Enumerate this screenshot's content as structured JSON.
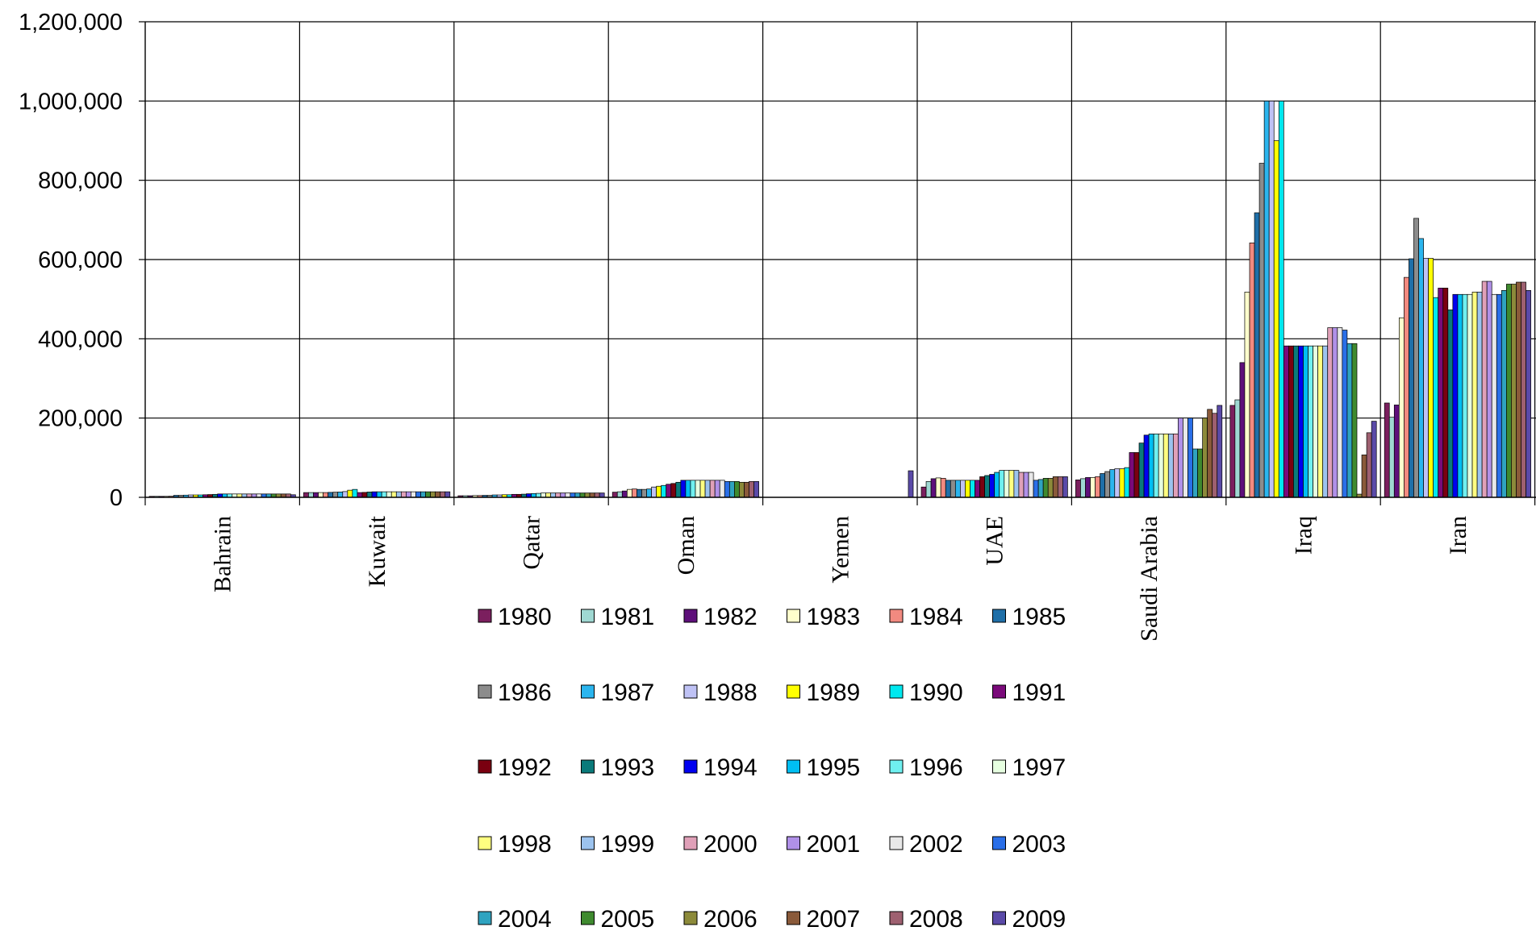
{
  "chart_data": {
    "type": "bar",
    "title": "",
    "xlabel": "",
    "ylabel": "",
    "ylim": [
      0,
      1200000
    ],
    "yticks": [
      0,
      200000,
      400000,
      600000,
      800000,
      1000000,
      1200000
    ],
    "ytick_labels": [
      "0",
      "200,000",
      "400,000",
      "600,000",
      "800,000",
      "1,000,000",
      "1,200,000"
    ],
    "grid": true,
    "legend_position": "bottom",
    "categories": [
      "Bahrain",
      "Kuwait",
      "Qatar",
      "Oman",
      "Yemen",
      "UAE",
      "Saudi Arabia",
      "Iraq",
      "Iran"
    ],
    "series": [
      {
        "name": "1980",
        "color": "#7B1F5E",
        "values": [
          2500,
          12000,
          4000,
          13000,
          0,
          26000,
          44000,
          232000,
          238000
        ]
      },
      {
        "name": "1981",
        "color": "#9FD8D2",
        "values": [
          2500,
          12000,
          4000,
          14000,
          0,
          40000,
          47000,
          246000,
          202000
        ]
      },
      {
        "name": "1982",
        "color": "#5E0F7A",
        "values": [
          2500,
          12000,
          4000,
          16000,
          0,
          47000,
          50000,
          340000,
          233000
        ]
      },
      {
        "name": "1983",
        "color": "#FFFFCC",
        "values": [
          2500,
          12000,
          4500,
          20000,
          0,
          49000,
          50000,
          518000,
          453000
        ]
      },
      {
        "name": "1984",
        "color": "#F28A80",
        "values": [
          2800,
          12000,
          4500,
          21000,
          0,
          48000,
          52000,
          642000,
          555000
        ]
      },
      {
        "name": "1985",
        "color": "#1F6FA8",
        "values": [
          5000,
          12500,
          5000,
          20000,
          0,
          43000,
          60000,
          718000,
          602000
        ]
      },
      {
        "name": "1986",
        "color": "#8C8C8C",
        "values": [
          5000,
          13000,
          5000,
          20000,
          0,
          43000,
          65000,
          843000,
          704000
        ]
      },
      {
        "name": "1987",
        "color": "#2BB5EE",
        "values": [
          5500,
          13500,
          6000,
          21000,
          0,
          43000,
          70000,
          1000000,
          653000
        ]
      },
      {
        "name": "1988",
        "color": "#BFC2F5",
        "values": [
          6000,
          14500,
          6000,
          26000,
          0,
          43000,
          72000,
          1000000,
          603000
        ]
      },
      {
        "name": "1989",
        "color": "#FFFF00",
        "values": [
          6000,
          18000,
          6500,
          28000,
          0,
          43000,
          72000,
          900000,
          603000
        ]
      },
      {
        "name": "1990",
        "color": "#00E8EF",
        "values": [
          6000,
          20000,
          6500,
          30000,
          0,
          43000,
          75000,
          1000000,
          504000
        ]
      },
      {
        "name": "1991",
        "color": "#7A0A7A",
        "values": [
          6500,
          12000,
          7500,
          33000,
          0,
          43000,
          113000,
          382000,
          528000
        ]
      },
      {
        "name": "1992",
        "color": "#7A0010",
        "values": [
          7000,
          12500,
          7500,
          35000,
          0,
          52000,
          113000,
          382000,
          528000
        ]
      },
      {
        "name": "1993",
        "color": "#0A7A7A",
        "values": [
          7500,
          13500,
          8000,
          38000,
          0,
          55000,
          137000,
          382000,
          473000
        ]
      },
      {
        "name": "1994",
        "color": "#0000F0",
        "values": [
          8500,
          14000,
          9000,
          43000,
          0,
          58000,
          157000,
          382000,
          512000
        ]
      },
      {
        "name": "1995",
        "color": "#00BFF3",
        "values": [
          8500,
          14000,
          9500,
          43000,
          0,
          63000,
          160000,
          382000,
          512000
        ]
      },
      {
        "name": "1996",
        "color": "#6FF0F0",
        "values": [
          8500,
          14000,
          10000,
          43000,
          0,
          68000,
          160000,
          382000,
          512000
        ]
      },
      {
        "name": "1997",
        "color": "#E6FFE0",
        "values": [
          8500,
          14000,
          11000,
          43000,
          0,
          68000,
          160000,
          382000,
          512000
        ]
      },
      {
        "name": "1998",
        "color": "#FFFF80",
        "values": [
          8500,
          14000,
          11000,
          43000,
          0,
          68000,
          160000,
          382000,
          518000
        ]
      },
      {
        "name": "1999",
        "color": "#9CC3EE",
        "values": [
          8500,
          14000,
          11000,
          43000,
          0,
          68000,
          160000,
          382000,
          518000
        ]
      },
      {
        "name": "2000",
        "color": "#E0A0B8",
        "values": [
          8500,
          14000,
          11000,
          43000,
          0,
          63000,
          160000,
          428000,
          545000
        ]
      },
      {
        "name": "2001",
        "color": "#B090E8",
        "values": [
          8500,
          14000,
          11000,
          43000,
          0,
          63000,
          200000,
          428000,
          545000
        ]
      },
      {
        "name": "2002",
        "color": "#E8E8E8",
        "values": [
          8500,
          14000,
          11000,
          43000,
          0,
          63000,
          200000,
          428000,
          512000
        ]
      },
      {
        "name": "2003",
        "color": "#2A6FE8",
        "values": [
          8500,
          14000,
          11000,
          40000,
          0,
          43000,
          200000,
          422000,
          512000
        ]
      },
      {
        "name": "2004",
        "color": "#2FA3C0",
        "values": [
          8500,
          14000,
          11000,
          40000,
          0,
          45000,
          122000,
          388000,
          522000
        ]
      },
      {
        "name": "2005",
        "color": "#3F8A2F",
        "values": [
          8500,
          14000,
          11000,
          40000,
          0,
          48000,
          122000,
          388000,
          538000
        ]
      },
      {
        "name": "2006",
        "color": "#8C8A3A",
        "values": [
          8500,
          14000,
          11000,
          38000,
          0,
          48000,
          200000,
          8000,
          538000
        ]
      },
      {
        "name": "2007",
        "color": "#8A5A3A",
        "values": [
          8500,
          14000,
          11000,
          38000,
          0,
          52000,
          222000,
          107000,
          543000
        ]
      },
      {
        "name": "2008",
        "color": "#9E6070",
        "values": [
          8500,
          14000,
          11000,
          40000,
          0,
          52000,
          212000,
          163000,
          543000
        ]
      },
      {
        "name": "2009",
        "color": "#5A4AA8",
        "values": [
          6500,
          14000,
          11000,
          40000,
          67000,
          52000,
          232000,
          192000,
          522000
        ]
      }
    ]
  }
}
